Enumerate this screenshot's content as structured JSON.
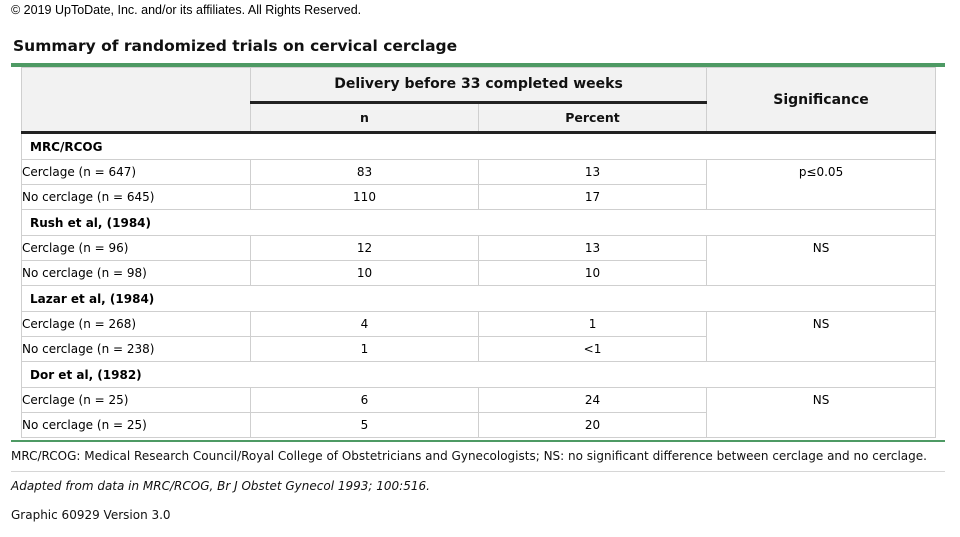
{
  "copyright": "© 2019 UpToDate, Inc. and/or its affiliates. All Rights Reserved.",
  "title": "Summary of randomized trials on cervical cerclage",
  "table": {
    "header": {
      "span_title": "Delivery before 33 completed weeks",
      "col_n": "n",
      "col_percent": "Percent",
      "col_significance": "Significance"
    },
    "groups": [
      {
        "name": "MRC/RCOG",
        "significance": "p≤0.05",
        "rows": [
          {
            "label": "Cerclage (n = 647)",
            "n": "83",
            "percent": "13"
          },
          {
            "label": "No cerclage (n = 645)",
            "n": "110",
            "percent": "17"
          }
        ]
      },
      {
        "name": "Rush et al, (1984)",
        "significance": "NS",
        "rows": [
          {
            "label": "Cerclage (n = 96)",
            "n": "12",
            "percent": "13"
          },
          {
            "label": "No cerclage (n = 98)",
            "n": "10",
            "percent": "10"
          }
        ]
      },
      {
        "name": "Lazar et al, (1984)",
        "significance": "NS",
        "rows": [
          {
            "label": "Cerclage (n = 268)",
            "n": "4",
            "percent": "1"
          },
          {
            "label": "No cerclage (n = 238)",
            "n": "1",
            "percent": "<1"
          }
        ]
      },
      {
        "name": "Dor et al, (1982)",
        "significance": "NS",
        "rows": [
          {
            "label": "Cerclage (n = 25)",
            "n": "6",
            "percent": "24"
          },
          {
            "label": "No cerclage (n = 25)",
            "n": "5",
            "percent": "20"
          }
        ]
      }
    ]
  },
  "footnote": "MRC/RCOG: Medical Research Council/Royal College of Obstetricians and Gynecologists; NS: no significant difference between cerclage and no cerclage.",
  "source": "Adapted from data in MRC/RCOG, Br J Obstet Gynecol 1993; 100:516.",
  "graphic_id": "Graphic 60929 Version 3.0",
  "colors": {
    "accent_green": "#4e9a64",
    "header_bg": "#f2f2f2"
  }
}
